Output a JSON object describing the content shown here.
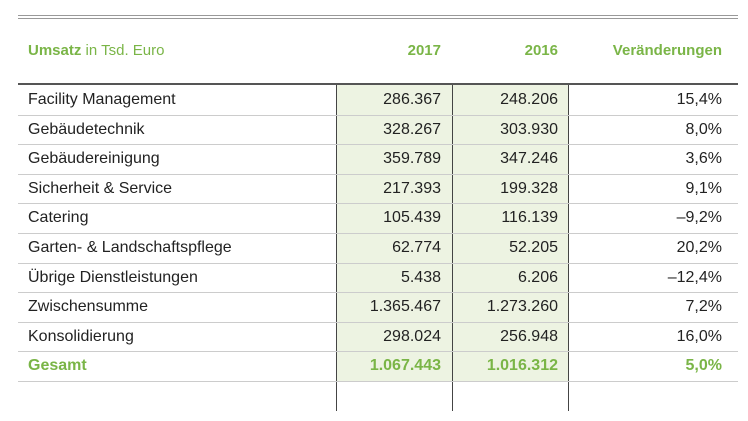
{
  "header": {
    "title_bold": "Umsatz",
    "title_rest": "in Tsd. Euro",
    "columns": [
      "2017",
      "2016",
      "Veränderungen"
    ]
  },
  "table": {
    "rows": [
      [
        "Facility Management",
        "286.367",
        "248.206",
        "15,4%"
      ],
      [
        "Gebäudetechnik",
        "328.267",
        "303.930",
        "8,0%"
      ],
      [
        "Gebäudereinigung",
        "359.789",
        "347.246",
        "3,6%"
      ],
      [
        "Sicherheit & Service",
        "217.393",
        "199.328",
        "9,1%"
      ],
      [
        "Catering",
        "105.439",
        "116.139",
        "–9,2%"
      ],
      [
        "Garten- & Landschaftspflege",
        "62.774",
        "52.205",
        "20,2%"
      ],
      [
        "Übrige Dienstleistungen",
        "5.438",
        "6.206",
        "–12,4%"
      ],
      [
        "Zwischensumme",
        "1.365.467",
        "1.273.260",
        "7,2%"
      ],
      [
        "Konsolidierung",
        "298.024",
        "256.948",
        "16,0%"
      ],
      [
        "Gesamt",
        "1.067.443",
        "1.016.312",
        "5,0%"
      ]
    ]
  }
}
